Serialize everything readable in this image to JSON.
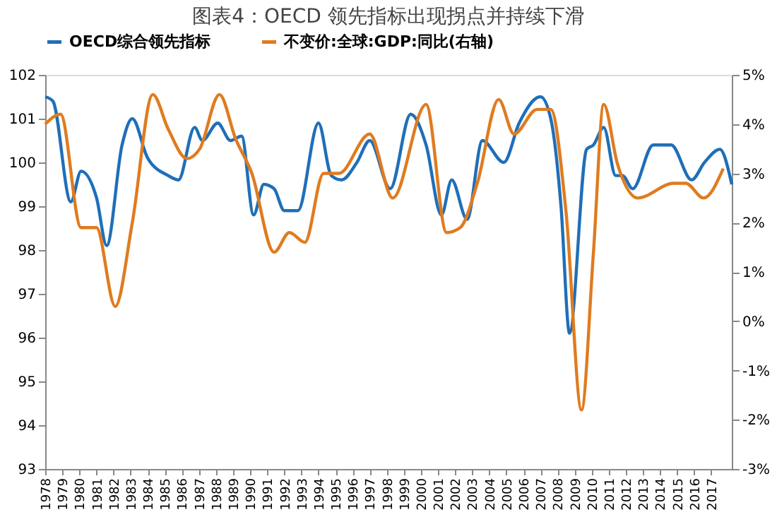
{
  "chart_data": {
    "type": "line",
    "title": "图表4：OECD 领先指标出现拐点并持续下滑",
    "xlim": [
      1978,
      2018.2
    ],
    "xticks": [
      1978,
      1979,
      1980,
      1981,
      1982,
      1983,
      1984,
      1985,
      1986,
      1987,
      1988,
      1989,
      1990,
      1991,
      1992,
      1993,
      1994,
      1995,
      1996,
      1997,
      1998,
      1999,
      2000,
      2001,
      2002,
      2003,
      2004,
      2005,
      2006,
      2007,
      2008,
      2009,
      2010,
      2011,
      2012,
      2013,
      2014,
      2015,
      2016,
      2017
    ],
    "ylim": [
      93,
      102
    ],
    "yticks": [
      93,
      94,
      95,
      96,
      97,
      98,
      99,
      100,
      101,
      102
    ],
    "y2lim": [
      -3,
      5
    ],
    "y2ticks": [
      {
        "value": -3,
        "label": "-3%"
      },
      {
        "value": -2,
        "label": "-2%"
      },
      {
        "value": -1,
        "label": "-1%"
      },
      {
        "value": 0,
        "label": "0%"
      },
      {
        "value": 1,
        "label": "1%"
      },
      {
        "value": 2,
        "label": "2%"
      },
      {
        "value": 3,
        "label": "3%"
      },
      {
        "value": 4,
        "label": "4%"
      },
      {
        "value": 5,
        "label": "5%"
      }
    ],
    "grid": false,
    "legend": "top",
    "marker": "none",
    "line_style": "solid",
    "series": [
      {
        "name": "OECD综合领先指标",
        "color": "#1f6fb8",
        "x": [
          1978,
          1978.45,
          1979.5,
          1980.1,
          1981.0,
          1981.6,
          1982.5,
          1983.1,
          1984.0,
          1985.2,
          1985.8,
          1986.75,
          1987.2,
          1988.1,
          1988.85,
          1989.5,
          1990.2,
          1990.8,
          1991.4,
          1992.0,
          1992.8,
          1994.0,
          1994.75,
          1995.35,
          1996.25,
          1997.0,
          1998.2,
          1999.4,
          2000.3,
          2001.2,
          2001.8,
          2002.7,
          2003.6,
          2004.85,
          2005.75,
          2007.0,
          2007.6,
          2008.2,
          2008.7,
          2009.7,
          2010.1,
          2010.7,
          2011.4,
          2011.8,
          2012.4,
          2013.6,
          2014.65,
          2015.85,
          2016.6,
          2017.5,
          2018.2
        ],
        "values": [
          101.5,
          101.4,
          99.1,
          99.8,
          99.2,
          98.1,
          100.4,
          101.0,
          100.1,
          99.7,
          99.6,
          100.8,
          100.5,
          100.9,
          100.5,
          100.6,
          98.8,
          99.5,
          99.4,
          98.9,
          98.9,
          100.9,
          99.7,
          99.6,
          100.0,
          100.5,
          99.4,
          101.1,
          100.4,
          98.8,
          99.6,
          98.7,
          100.5,
          100.0,
          100.9,
          101.5,
          101.0,
          99.0,
          96.1,
          100.3,
          100.4,
          100.8,
          99.7,
          99.7,
          99.4,
          100.4,
          100.4,
          99.6,
          100.0,
          100.3,
          99.5
        ]
      },
      {
        "name": "不变价:全球:GDP:同比(右轴)",
        "color": "#e07b1f",
        "axis": "y2",
        "x": [
          1978,
          1978.9,
          1980.1,
          1981.0,
          1982.1,
          1983.1,
          1984.3,
          1985.2,
          1986.3,
          1987.05,
          1988.2,
          1989.15,
          1990.1,
          1991.4,
          1992.3,
          1993.2,
          1994.3,
          1995.2,
          1997.0,
          1998.35,
          2000.3,
          2001.5,
          2002.3,
          2003.3,
          2004.55,
          2005.45,
          2006.8,
          2007.6,
          2008.5,
          2009.4,
          2010.1,
          2010.7,
          2011.5,
          2012.7,
          2014.8,
          2015.5,
          2016.55,
          2017.7
        ],
        "values": [
          4.0,
          4.2,
          1.9,
          1.9,
          0.3,
          2.0,
          4.6,
          3.9,
          3.3,
          3.5,
          4.6,
          3.7,
          3.0,
          1.4,
          1.8,
          1.6,
          3.0,
          3.0,
          3.8,
          2.5,
          4.4,
          1.8,
          1.9,
          2.8,
          4.5,
          3.8,
          4.3,
          4.3,
          2.2,
          -1.8,
          1.4,
          4.4,
          3.2,
          2.5,
          2.8,
          2.8,
          2.5,
          3.1
        ]
      }
    ]
  }
}
